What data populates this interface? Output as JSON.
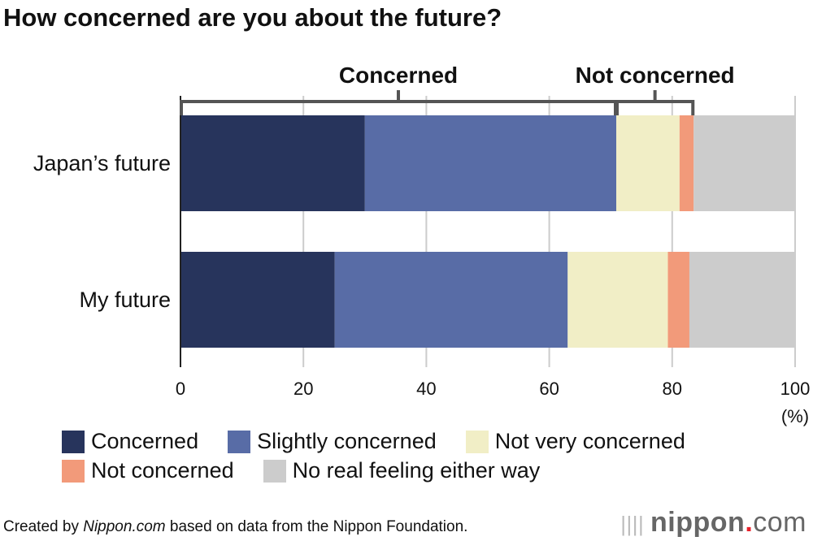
{
  "title": "How concerned are you about the future?",
  "chart_data": {
    "type": "bar",
    "orientation": "horizontal-stacked",
    "title": "How concerned are you about the future?",
    "categories": [
      "Japan’s future",
      "My future"
    ],
    "series": [
      {
        "name": "Concerned",
        "color": "#27345c",
        "values": [
          30.0,
          25.1
        ]
      },
      {
        "name": "Slightly concerned",
        "color": "#586ca6",
        "values": [
          40.9,
          37.9
        ]
      },
      {
        "name": "Not very concerned",
        "color": "#f1eec6",
        "values": [
          10.3,
          16.3
        ]
      },
      {
        "name": "Not concerned",
        "color": "#f29a7a",
        "values": [
          2.3,
          3.5
        ]
      },
      {
        "name": "No real feeling either way",
        "color": "#cccccc",
        "values": [
          16.5,
          17.2
        ]
      }
    ],
    "xlim": [
      0,
      100
    ],
    "xticks": [
      "0",
      "20",
      "40",
      "60",
      "80",
      "100"
    ],
    "xunit": "(%)",
    "grid": true,
    "brackets": [
      {
        "label": "Concerned",
        "from_series": 0,
        "to_series": 1
      },
      {
        "label": "Not concerned",
        "from_series": 2,
        "to_series": 3
      }
    ],
    "legend_position": "bottom"
  },
  "credit": {
    "pre": "Created by ",
    "brand": "Nippon.com",
    "post": " based on data from the Nippon Foundation."
  },
  "logo": {
    "name": "nippon",
    "dot": ".",
    "suffix": "com"
  }
}
